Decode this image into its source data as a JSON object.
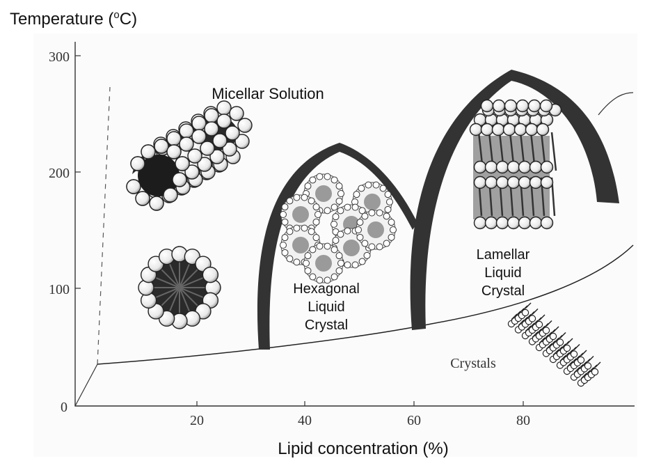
{
  "chart_data": {
    "type": "diagram",
    "y_axis_title": "Temperature (oC)",
    "y_axis_title_main": "Temperature (",
    "y_axis_title_sup": "o",
    "y_axis_title_end": "C)",
    "x_axis_title": "Lipid concentration (%)",
    "y_ticks": [
      "300",
      "200",
      "100",
      "0"
    ],
    "x_ticks": [
      "20",
      "40",
      "60",
      "80"
    ],
    "regions": {
      "micellar": "Micellar Solution",
      "hexagonal": [
        "Hexagonal",
        "Liquid",
        "Crystal"
      ],
      "lamellar": [
        "Lamellar",
        "Liquid",
        "Crystal"
      ],
      "crystals": "Crystals"
    },
    "y_range": [
      0,
      300
    ],
    "x_range": [
      0,
      100
    ]
  }
}
